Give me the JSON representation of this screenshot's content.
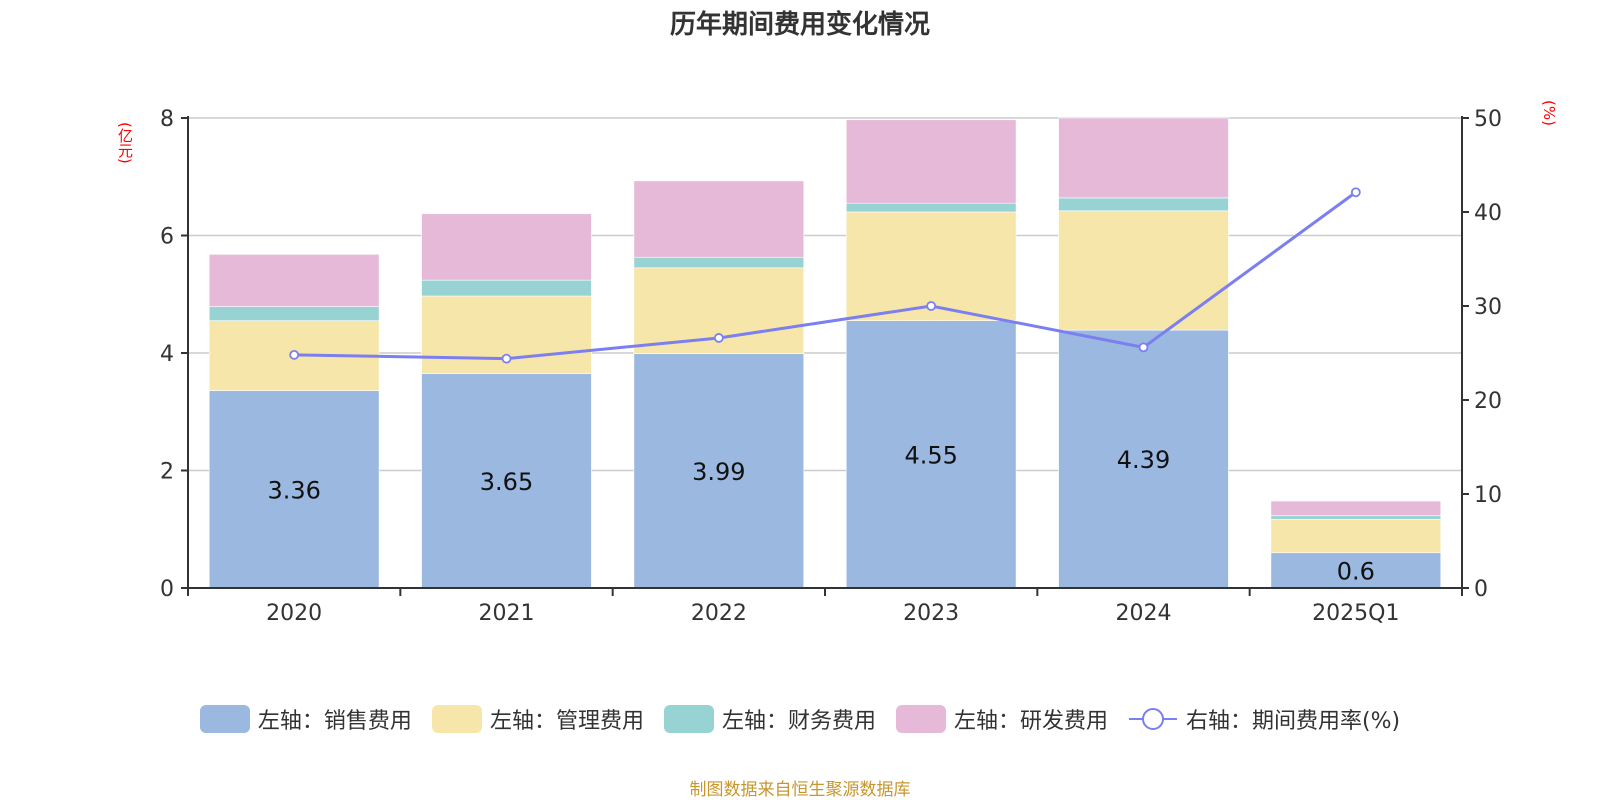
{
  "chart_data": {
    "type": "bar",
    "title": "历年期间费用变化情况",
    "categories": [
      "2020",
      "2021",
      "2022",
      "2023",
      "2024",
      "2025Q1"
    ],
    "left_axis": {
      "unit_label": "(亿元)",
      "ylim": [
        0,
        8
      ],
      "ticks": [
        0,
        2,
        4,
        6,
        8
      ]
    },
    "right_axis": {
      "unit_label": "(%)",
      "ylim": [
        0,
        50
      ],
      "ticks": [
        0,
        10,
        20,
        30,
        40,
        50
      ]
    },
    "grid": true,
    "legend_position": "bottom",
    "series": [
      {
        "name": "左轴：销售费用",
        "axis": "left",
        "kind": "stacked-bar",
        "color": "#9bb8e1",
        "values": [
          3.36,
          3.65,
          3.99,
          4.55,
          4.39,
          0.6
        ],
        "labels": [
          "3.36",
          "3.65",
          "3.99",
          "4.55",
          "4.39",
          "0.6"
        ]
      },
      {
        "name": "左轴：管理费用",
        "axis": "left",
        "kind": "stacked-bar",
        "color": "#f7e6a9",
        "values": [
          1.19,
          1.32,
          1.46,
          1.85,
          2.03,
          0.57
        ]
      },
      {
        "name": "左轴：财务费用",
        "axis": "left",
        "kind": "stacked-bar",
        "color": "#98d3d4",
        "values": [
          0.24,
          0.27,
          0.18,
          0.15,
          0.22,
          0.06
        ]
      },
      {
        "name": "左轴：研发费用",
        "axis": "left",
        "kind": "stacked-bar",
        "color": "#e7b9d8",
        "values": [
          0.89,
          1.13,
          1.3,
          1.42,
          1.36,
          0.25
        ]
      },
      {
        "name": "右轴：期间费用率(%)",
        "axis": "right",
        "kind": "line",
        "color": "#7b7ff0",
        "values": [
          24.8,
          24.4,
          26.6,
          30.0,
          25.6,
          42.1
        ]
      }
    ]
  },
  "source": "制图数据来自恒生聚源数据库"
}
